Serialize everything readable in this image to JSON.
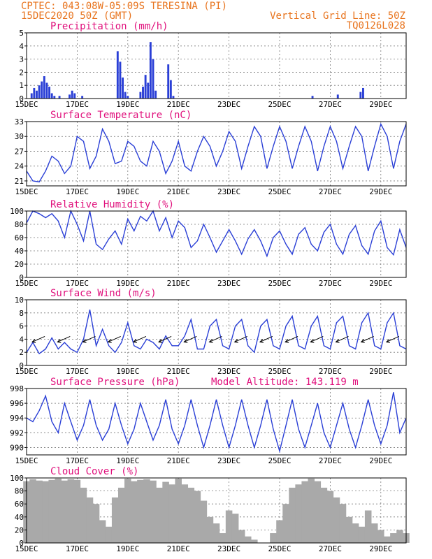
{
  "header": {
    "line1_left": "CPTEC:   043:08W-05:09S  TERESINA (PI)",
    "line2_left": "15DEC2020 50Z (GMT)",
    "line1_right": "Vertical Grid Line: 50Z",
    "line2_right": "TQ0126L028"
  },
  "x_axis": {
    "start_label": "15DEC",
    "tick_labels": [
      "15DEC",
      "17DEC",
      "19DEC",
      "21DEC",
      "23DEC",
      "25DEC",
      "27DEC",
      "29DEC"
    ],
    "tick_days": [
      0,
      2,
      4,
      6,
      8,
      10,
      12,
      14
    ],
    "total_days": 15
  },
  "panels": {
    "precip": {
      "title": "Precipitation (mm/h)",
      "y_ticks": [
        0,
        1,
        2,
        3,
        4,
        5
      ]
    },
    "temp": {
      "title": "Surface Temperature (nC)",
      "y_ticks": [
        21,
        24,
        27,
        30,
        33
      ]
    },
    "rh": {
      "title": "Relative Humidity (%)",
      "y_ticks": [
        0,
        20,
        40,
        60,
        80,
        100
      ]
    },
    "wind": {
      "title": "Surface Wind (m/s)",
      "y_ticks": [
        0,
        2,
        4,
        6,
        8,
        10
      ]
    },
    "pres": {
      "title": "Surface Pressure (hPa)",
      "extra": "Model Altitude: 143.119 m",
      "y_ticks": [
        990,
        992,
        994,
        996,
        998
      ]
    },
    "cloud": {
      "title": "Cloud Cover (%)",
      "y_ticks": [
        0,
        20,
        40,
        60,
        80,
        100
      ]
    }
  },
  "chart_data": [
    {
      "type": "bar",
      "title": "Precipitation (mm/h)",
      "ylim": [
        0,
        5
      ],
      "x_days": [
        0.2,
        0.3,
        0.4,
        0.5,
        0.6,
        0.7,
        0.8,
        0.9,
        1.0,
        1.1,
        1.3,
        1.7,
        1.8,
        1.9,
        2.2,
        3.6,
        3.7,
        3.8,
        3.9,
        4.0,
        4.5,
        4.6,
        4.7,
        4.8,
        4.9,
        5.0,
        5.1,
        5.6,
        5.7,
        5.8,
        11.3,
        12.3,
        13.2,
        13.3
      ],
      "values": [
        0.4,
        0.8,
        0.6,
        1.0,
        1.3,
        1.7,
        1.2,
        0.9,
        0.4,
        0.2,
        0.2,
        0.3,
        0.6,
        0.4,
        0.2,
        3.6,
        2.8,
        1.6,
        0.5,
        0.2,
        0.5,
        0.9,
        1.8,
        1.2,
        4.3,
        3.0,
        0.6,
        2.6,
        1.4,
        0.2,
        0.2,
        0.3,
        0.5,
        0.8
      ]
    },
    {
      "type": "line",
      "title": "Surface Temperature (nC)",
      "ylim": [
        20,
        33
      ],
      "x_days": [
        0,
        0.25,
        0.5,
        0.75,
        1,
        1.25,
        1.5,
        1.75,
        2,
        2.25,
        2.5,
        2.75,
        3,
        3.25,
        3.5,
        3.75,
        4,
        4.25,
        4.5,
        4.75,
        5,
        5.25,
        5.5,
        5.75,
        6,
        6.25,
        6.5,
        6.75,
        7,
        7.25,
        7.5,
        7.75,
        8,
        8.25,
        8.5,
        8.75,
        9,
        9.25,
        9.5,
        9.75,
        10,
        10.25,
        10.5,
        10.75,
        11,
        11.25,
        11.5,
        11.75,
        12,
        12.25,
        12.5,
        12.75,
        13,
        13.25,
        13.5,
        13.75,
        14,
        14.25,
        14.5,
        14.75,
        15
      ],
      "values": [
        23,
        21,
        20.8,
        23,
        26,
        25,
        22.5,
        24,
        30,
        29,
        23.5,
        26,
        31.5,
        29,
        24.5,
        25,
        29,
        28,
        25,
        24,
        29,
        27,
        22.5,
        25,
        29,
        24,
        23,
        27,
        30,
        28,
        24,
        27,
        31,
        29,
        23.5,
        28,
        32,
        30,
        23.5,
        28,
        32,
        29,
        23.5,
        28,
        32,
        29,
        23,
        28,
        32,
        29,
        23.5,
        28,
        32,
        30,
        23,
        28,
        32.5,
        30,
        23.5,
        29,
        32.5
      ]
    },
    {
      "type": "line",
      "title": "Relative Humidity (%)",
      "ylim": [
        0,
        100
      ],
      "x_days": [
        0,
        0.25,
        0.5,
        0.75,
        1,
        1.25,
        1.5,
        1.75,
        2,
        2.25,
        2.5,
        2.75,
        3,
        3.25,
        3.5,
        3.75,
        4,
        4.25,
        4.5,
        4.75,
        5,
        5.25,
        5.5,
        5.75,
        6,
        6.25,
        6.5,
        6.75,
        7,
        7.25,
        7.5,
        7.75,
        8,
        8.25,
        8.5,
        8.75,
        9,
        9.25,
        9.5,
        9.75,
        10,
        10.25,
        10.5,
        10.75,
        11,
        11.25,
        11.5,
        11.75,
        12,
        12.25,
        12.5,
        12.75,
        13,
        13.25,
        13.5,
        13.75,
        14,
        14.25,
        14.5,
        14.75,
        15
      ],
      "values": [
        82,
        100,
        96,
        90,
        96,
        85,
        60,
        100,
        80,
        55,
        100,
        50,
        42,
        58,
        70,
        50,
        88,
        70,
        92,
        85,
        100,
        70,
        90,
        60,
        85,
        75,
        45,
        55,
        80,
        60,
        38,
        55,
        72,
        55,
        35,
        58,
        72,
        55,
        32,
        60,
        70,
        50,
        35,
        65,
        75,
        50,
        40,
        68,
        80,
        50,
        35,
        65,
        78,
        48,
        35,
        70,
        85,
        45,
        34,
        72,
        45
      ]
    },
    {
      "type": "line",
      "title": "Surface Wind (m/s)",
      "ylim": [
        0,
        10
      ],
      "x_days": [
        0,
        0.25,
        0.5,
        0.75,
        1,
        1.25,
        1.5,
        1.75,
        2,
        2.25,
        2.5,
        2.75,
        3,
        3.25,
        3.5,
        3.75,
        4,
        4.25,
        4.5,
        4.75,
        5,
        5.25,
        5.5,
        5.75,
        6,
        6.25,
        6.5,
        6.75,
        7,
        7.25,
        7.5,
        7.75,
        8,
        8.25,
        8.5,
        8.75,
        9,
        9.25,
        9.5,
        9.75,
        10,
        10.25,
        10.5,
        10.75,
        11,
        11.25,
        11.5,
        11.75,
        12,
        12.25,
        12.5,
        12.75,
        13,
        13.25,
        13.5,
        13.75,
        14,
        14.25,
        14.5,
        14.75,
        15
      ],
      "values": [
        2,
        3.5,
        1.8,
        2.5,
        4.2,
        2.5,
        3.5,
        2.5,
        2,
        4,
        8.5,
        3,
        5.5,
        3,
        2,
        3.5,
        6.5,
        3,
        2.5,
        4,
        3.5,
        2.5,
        4.5,
        3,
        3,
        4.5,
        7,
        2.5,
        2.5,
        6,
        7,
        3,
        2.5,
        6,
        7,
        3,
        2,
        6,
        7,
        3,
        2.5,
        6,
        7.5,
        3,
        2.5,
        6,
        7.5,
        3,
        2.5,
        6.5,
        7.5,
        3,
        2.5,
        6.5,
        8,
        3,
        2.5,
        6.5,
        8,
        3,
        2.5
      ]
    },
    {
      "type": "line",
      "title": "Surface Pressure (hPa)",
      "ylim": [
        989,
        998
      ],
      "x_days": [
        0,
        0.25,
        0.5,
        0.75,
        1,
        1.25,
        1.5,
        1.75,
        2,
        2.25,
        2.5,
        2.75,
        3,
        3.25,
        3.5,
        3.75,
        4,
        4.25,
        4.5,
        4.75,
        5,
        5.25,
        5.5,
        5.75,
        6,
        6.25,
        6.5,
        6.75,
        7,
        7.25,
        7.5,
        7.75,
        8,
        8.25,
        8.5,
        8.75,
        9,
        9.25,
        9.5,
        9.75,
        10,
        10.25,
        10.5,
        10.75,
        11,
        11.25,
        11.5,
        11.75,
        12,
        12.25,
        12.5,
        12.75,
        13,
        13.25,
        13.5,
        13.75,
        14,
        14.25,
        14.5,
        14.75,
        15
      ],
      "values": [
        994,
        993.5,
        995,
        997,
        993.5,
        992,
        996,
        993.5,
        991,
        993,
        996.5,
        993,
        991,
        992.5,
        996,
        993,
        990.5,
        992.5,
        996,
        993.5,
        991,
        993,
        996.5,
        992.5,
        990.5,
        993,
        996.5,
        993,
        990,
        993,
        996.5,
        993,
        990,
        993,
        996.5,
        993,
        990,
        993,
        996.5,
        992.5,
        989.5,
        993,
        996.5,
        992.5,
        990,
        993,
        996,
        992,
        990,
        993,
        996,
        992.5,
        990,
        993,
        996.5,
        993,
        990.5,
        993,
        997.5,
        992,
        994
      ]
    },
    {
      "type": "bar",
      "title": "Cloud Cover (%)",
      "ylim": [
        0,
        100
      ],
      "x_days": [
        0,
        0.25,
        0.5,
        0.75,
        1,
        1.25,
        1.5,
        1.75,
        2,
        2.25,
        2.5,
        2.75,
        3,
        3.25,
        3.5,
        3.75,
        4,
        4.25,
        4.5,
        4.75,
        5,
        5.25,
        5.5,
        5.75,
        6,
        6.25,
        6.5,
        6.75,
        7,
        7.25,
        7.5,
        7.75,
        8,
        8.25,
        8.5,
        8.75,
        9,
        9.25,
        9.5,
        9.75,
        10,
        10.25,
        10.5,
        10.75,
        11,
        11.25,
        11.5,
        11.75,
        12,
        12.25,
        12.5,
        12.75,
        13,
        13.25,
        13.5,
        13.75,
        14,
        14.25,
        14.5,
        14.75,
        15
      ],
      "values": [
        95,
        98,
        96,
        95,
        97,
        99,
        96,
        98,
        97,
        85,
        70,
        60,
        35,
        25,
        70,
        85,
        99,
        95,
        97,
        98,
        96,
        85,
        94,
        90,
        99,
        90,
        85,
        80,
        65,
        40,
        30,
        15,
        50,
        45,
        20,
        10,
        5,
        0,
        0,
        15,
        35,
        60,
        85,
        90,
        95,
        99,
        95,
        85,
        80,
        70,
        60,
        40,
        30,
        25,
        50,
        30,
        20,
        10,
        15,
        20,
        15
      ]
    }
  ]
}
